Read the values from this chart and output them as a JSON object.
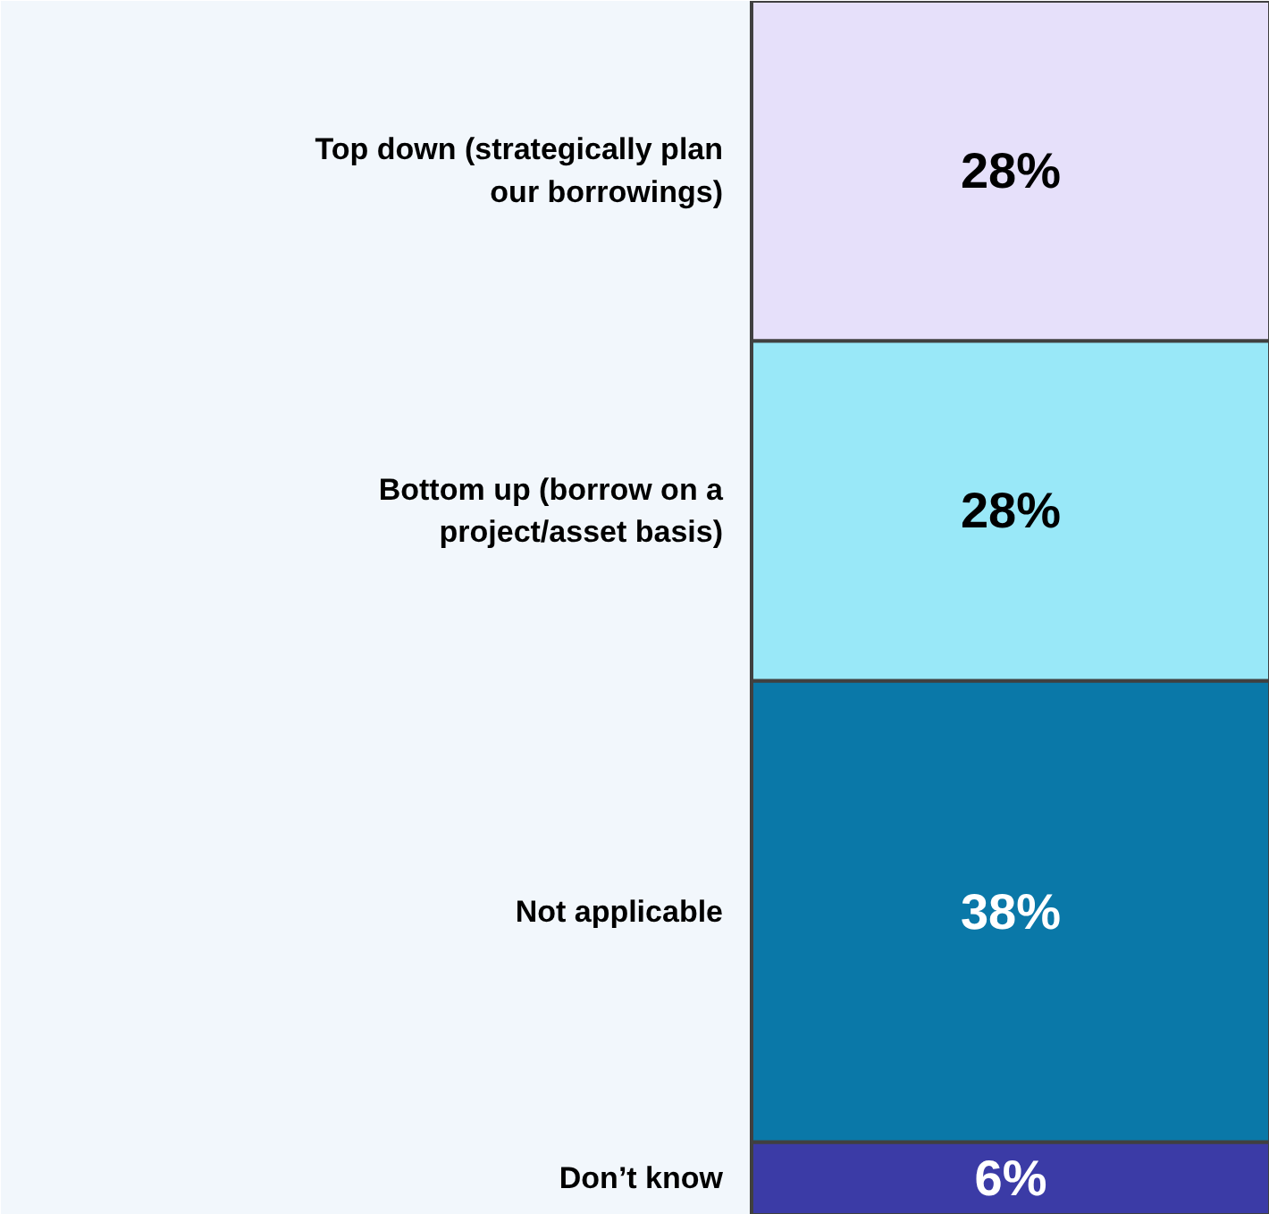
{
  "chart_data": {
    "type": "bar",
    "stacked": true,
    "categories": [
      null
    ],
    "series": [
      {
        "name": "Don’t know",
        "color": "#3b3ba6",
        "values": [
          6
        ],
        "value_labels": [
          "6%"
        ]
      },
      {
        "name": "Not applicable",
        "color": "#0a78a8",
        "values": [
          38
        ],
        "value_labels": [
          "38%"
        ]
      },
      {
        "name": "Bottom up (borrow on a project/asset basis)",
        "color": "#99e8f8",
        "values": [
          28
        ],
        "value_labels": [
          "28%"
        ]
      },
      {
        "name": "Top down (strategically plan our borrowings)",
        "color": "#e6e0fa",
        "values": [
          28
        ],
        "value_labels": [
          "28%"
        ]
      }
    ]
  }
}
